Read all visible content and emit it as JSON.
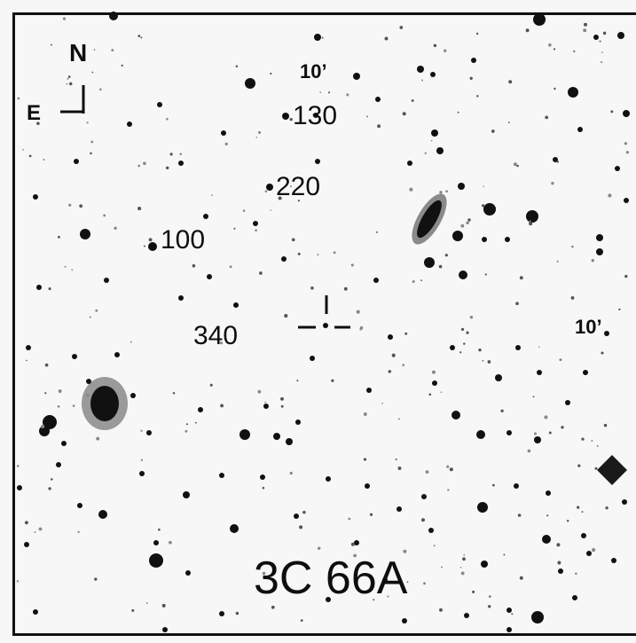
{
  "finder_chart": {
    "title": "3C 66A",
    "orientation": {
      "north": "N",
      "east": "E"
    },
    "scale_labels": {
      "top": "10’",
      "right": "10’"
    },
    "comparison_stars": [
      {
        "label": "130"
      },
      {
        "label": "220"
      },
      {
        "label": "100"
      },
      {
        "label": "340"
      }
    ]
  },
  "colors": {
    "background": "#f7f7f7",
    "ink": "#0e0e0e"
  }
}
